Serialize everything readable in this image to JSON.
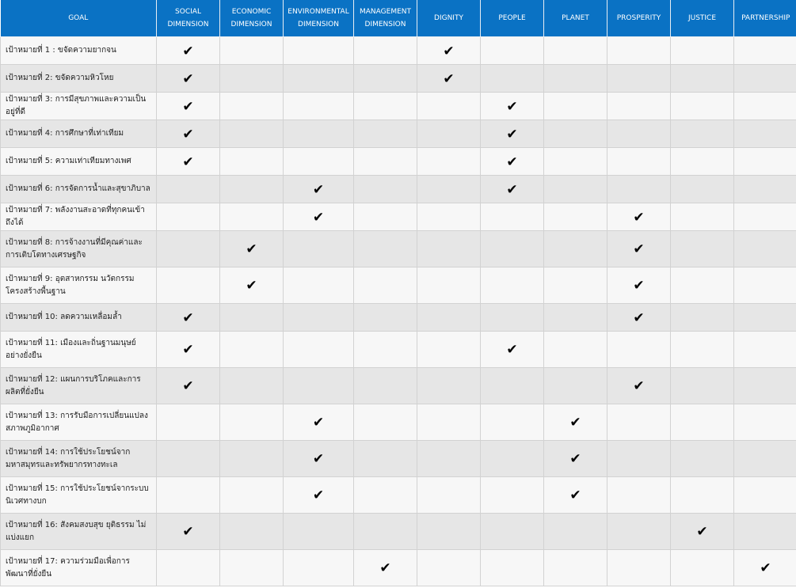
{
  "headers": {
    "goal": "GOAL",
    "social": "SOCIAL DIMENSION",
    "economic": "ECONOMIC DIMENSION",
    "environmental": "ENVIRONMENTAL DIMENSION",
    "management": "MANAGEMENT DIMENSION",
    "dignity": "DIGNITY",
    "people": "PEOPLE",
    "planet": "PLANET",
    "prosperity": "PROSPERITY",
    "justice": "JUSTICE",
    "partnership": "PARTNERSHIP"
  },
  "check_icon": "check-icon",
  "check_glyph": "✔",
  "rows": [
    {
      "goal": "เป้าหมายที่ 1 : ขจัดความยากจน",
      "checks": [
        1,
        0,
        0,
        0,
        1,
        0,
        0,
        0,
        0,
        0
      ]
    },
    {
      "goal": "เป้าหมายที่ 2: ขจัดความหิวโหย",
      "checks": [
        1,
        0,
        0,
        0,
        1,
        0,
        0,
        0,
        0,
        0
      ]
    },
    {
      "goal": "เป้าหมายที่ 3: การมีสุขภาพและความเป็นอยู่ที่ดี",
      "checks": [
        1,
        0,
        0,
        0,
        0,
        1,
        0,
        0,
        0,
        0
      ]
    },
    {
      "goal": "เป้าหมายที่ 4: การศึกษาที่เท่าเทียม",
      "checks": [
        1,
        0,
        0,
        0,
        0,
        1,
        0,
        0,
        0,
        0
      ]
    },
    {
      "goal": "เป้าหมายที่ 5: ความเท่าเทียมทางเพศ",
      "checks": [
        1,
        0,
        0,
        0,
        0,
        1,
        0,
        0,
        0,
        0
      ]
    },
    {
      "goal": "เป้าหมายที่ 6: การจัดการน้ำและสุขาภิบาล",
      "checks": [
        0,
        0,
        1,
        0,
        0,
        1,
        0,
        0,
        0,
        0
      ]
    },
    {
      "goal": "เป้าหมายที่ 7: พลังงานสะอาดที่ทุกคนเข้าถึงได้",
      "checks": [
        0,
        0,
        1,
        0,
        0,
        0,
        0,
        1,
        0,
        0
      ]
    },
    {
      "goal": "เป้าหมายที่ 8: การจ้างงานที่มีคุณค่าและการเติบโตทางเศรษฐกิจ",
      "checks": [
        0,
        1,
        0,
        0,
        0,
        0,
        0,
        1,
        0,
        0
      ]
    },
    {
      "goal": "เป้าหมายที่ 9: อุตสาหกรรม นวัตกรรม โครงสร้างพื้นฐาน",
      "checks": [
        0,
        1,
        0,
        0,
        0,
        0,
        0,
        1,
        0,
        0
      ]
    },
    {
      "goal": "เป้าหมายที่ 10: ลดความเหลื่อมล้ำ",
      "checks": [
        1,
        0,
        0,
        0,
        0,
        0,
        0,
        1,
        0,
        0
      ]
    },
    {
      "goal": "เป้าหมายที่ 11: เมืองและถิ่นฐานมนุษย์อย่างยั่งยืน",
      "checks": [
        1,
        0,
        0,
        0,
        0,
        1,
        0,
        0,
        0,
        0
      ]
    },
    {
      "goal": "เป้าหมายที่ 12: แผนการบริโภคและการผลิตที่ยั่งยืน",
      "checks": [
        1,
        0,
        0,
        0,
        0,
        0,
        0,
        1,
        0,
        0
      ]
    },
    {
      "goal": "เป้าหมายที่ 13: การรับมือการเปลี่ยนแปลงสภาพภูมิอากาศ",
      "checks": [
        0,
        0,
        1,
        0,
        0,
        0,
        1,
        0,
        0,
        0
      ]
    },
    {
      "goal": "เป้าหมายที่ 14: การใช้ประโยชน์จากมหาสมุทรและทรัพยากรทางทะเล",
      "checks": [
        0,
        0,
        1,
        0,
        0,
        0,
        1,
        0,
        0,
        0
      ]
    },
    {
      "goal": "เป้าหมายที่ 15: การใช้ประโยชน์จากระบบนิเวศทางบก",
      "checks": [
        0,
        0,
        1,
        0,
        0,
        0,
        1,
        0,
        0,
        0
      ]
    },
    {
      "goal": "เป้าหมายที่ 16: สังคมสงบสุข ยุติธรรม ไม่แบ่งแยก",
      "checks": [
        1,
        0,
        0,
        0,
        0,
        0,
        0,
        0,
        1,
        0
      ]
    },
    {
      "goal": "เป้าหมายที่ 17: ความร่วมมือเพื่อการพัฒนาที่ยั่งยืน",
      "checks": [
        0,
        0,
        0,
        1,
        0,
        0,
        0,
        0,
        0,
        1
      ]
    }
  ]
}
